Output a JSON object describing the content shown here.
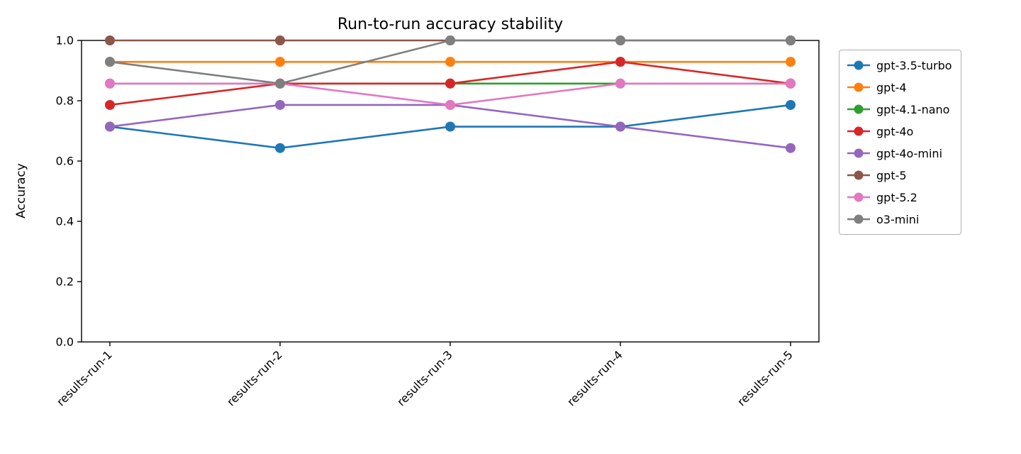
{
  "chart_data": {
    "type": "line",
    "title": "Run-to-run accuracy stability",
    "xlabel": "",
    "ylabel": "Accuracy",
    "ylim": [
      0.0,
      1.0
    ],
    "yticks": [
      0.0,
      0.2,
      0.4,
      0.6,
      0.8,
      1.0
    ],
    "categories": [
      "results-run-1",
      "results-run-2",
      "results-run-3",
      "results-run-4",
      "results-run-5"
    ],
    "grid": false,
    "legend_position": "right-outside",
    "series": [
      {
        "name": "gpt-3.5-turbo",
        "color": "#1f77b4",
        "values": [
          0.714,
          0.643,
          0.714,
          0.714,
          0.786
        ]
      },
      {
        "name": "gpt-4",
        "color": "#ff7f0e",
        "values": [
          0.929,
          0.929,
          0.929,
          0.929,
          0.929
        ]
      },
      {
        "name": "gpt-4.1-nano",
        "color": "#2ca02c",
        "values": [
          0.857,
          0.857,
          0.857,
          0.857,
          0.857
        ]
      },
      {
        "name": "gpt-4o",
        "color": "#d62728",
        "values": [
          0.786,
          0.857,
          0.857,
          0.929,
          0.857
        ]
      },
      {
        "name": "gpt-4o-mini",
        "color": "#9467bd",
        "values": [
          0.714,
          0.786,
          0.786,
          0.714,
          0.643
        ]
      },
      {
        "name": "gpt-5",
        "color": "#8c564b",
        "values": [
          1.0,
          1.0,
          1.0,
          1.0,
          1.0
        ]
      },
      {
        "name": "gpt-5.2",
        "color": "#e377c2",
        "values": [
          0.857,
          0.857,
          0.786,
          0.857,
          0.857
        ]
      },
      {
        "name": "o3-mini",
        "color": "#7f7f7f",
        "values": [
          0.929,
          0.857,
          1.0,
          1.0,
          1.0
        ]
      }
    ]
  }
}
